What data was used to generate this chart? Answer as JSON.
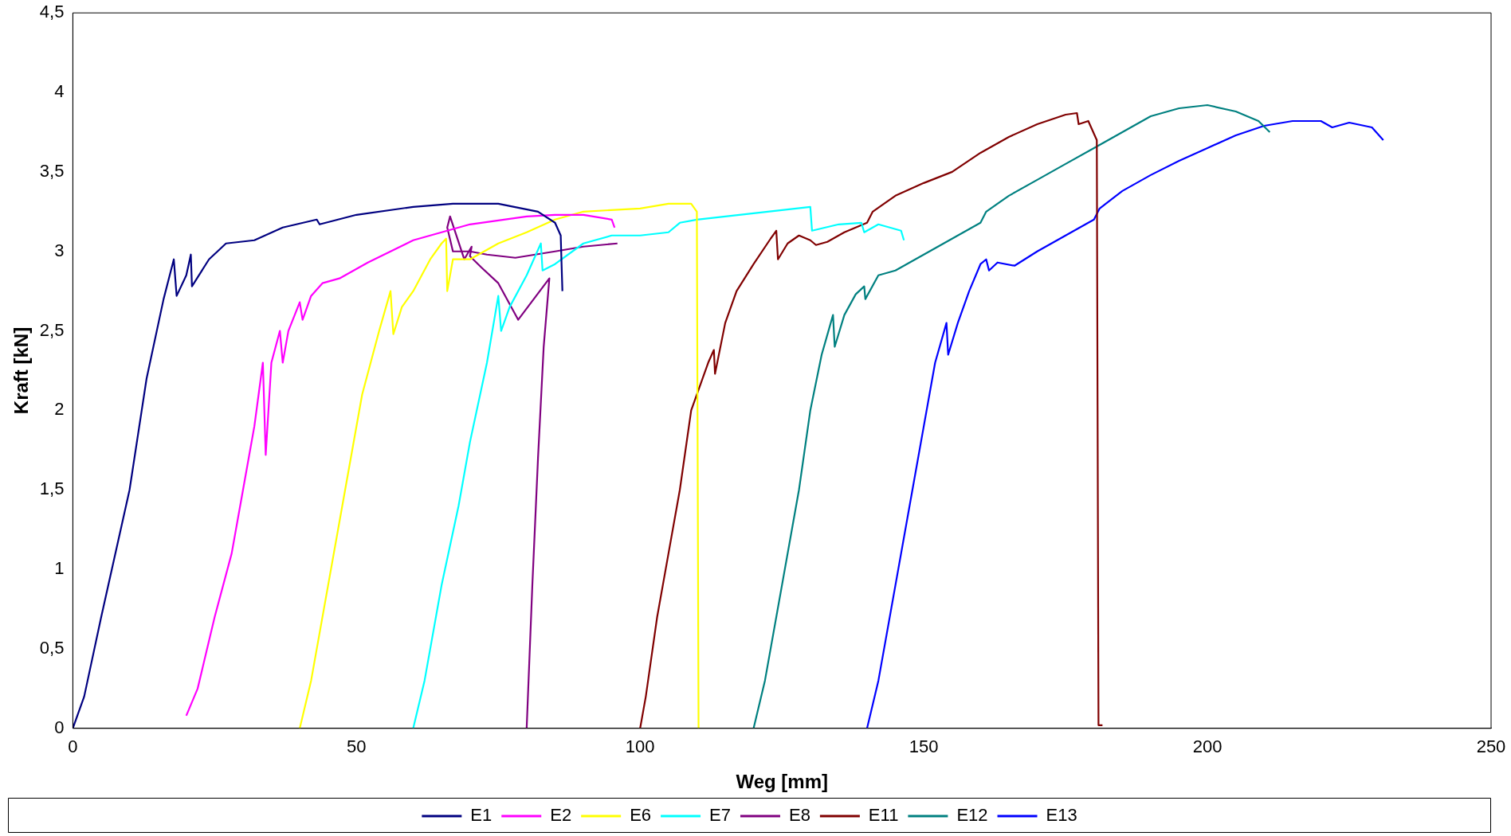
{
  "chart_data": {
    "type": "line",
    "xlabel": "Weg [mm]",
    "ylabel": "Kraft [kN]",
    "xlim": [
      0,
      250
    ],
    "xticks": [
      0,
      50,
      100,
      150,
      200,
      250
    ],
    "ylim": [
      0,
      4.5
    ],
    "yticks": [
      0,
      {
        "value": 0.5,
        "label": "0,5"
      },
      1,
      {
        "value": 1.5,
        "label": "1,5"
      },
      2,
      {
        "value": 2.5,
        "label": "2,5"
      },
      3,
      {
        "value": 3.5,
        "label": "3,5"
      },
      4,
      {
        "value": 4.5,
        "label": "4,5"
      }
    ],
    "grid": false,
    "legend": "bottom",
    "marker": "none",
    "line_style": "solid",
    "series": [
      {
        "name": "E1",
        "color": "#000080",
        "x": [
          0,
          2,
          5,
          10,
          13,
          16,
          17.8,
          18.3,
          20,
          20.8,
          21,
          24,
          27,
          32,
          37,
          43,
          43.5,
          50,
          60,
          67,
          75,
          82,
          85,
          86,
          86.3
        ],
        "values": [
          0,
          0.2,
          0.7,
          1.5,
          2.2,
          2.7,
          2.95,
          2.72,
          2.85,
          2.98,
          2.78,
          2.95,
          3.05,
          3.07,
          3.15,
          3.2,
          3.17,
          3.23,
          3.28,
          3.3,
          3.3,
          3.25,
          3.18,
          3.1,
          2.75
        ]
      },
      {
        "name": "E2",
        "color": "#ff00ff",
        "x": [
          20,
          22,
          25,
          28,
          30,
          32,
          33.5,
          34,
          35,
          36.5,
          37,
          38,
          40,
          40.5,
          42,
          44,
          47,
          52,
          60,
          70,
          80,
          85,
          90,
          95,
          95.5
        ],
        "values": [
          0.08,
          0.25,
          0.7,
          1.1,
          1.5,
          1.9,
          2.3,
          1.72,
          2.3,
          2.5,
          2.3,
          2.5,
          2.68,
          2.57,
          2.72,
          2.8,
          2.83,
          2.93,
          3.07,
          3.17,
          3.22,
          3.23,
          3.23,
          3.2,
          3.15
        ]
      },
      {
        "name": "E6",
        "color": "#ffff00",
        "x": [
          40,
          42,
          45,
          48,
          51,
          54,
          56,
          56.5,
          58,
          60,
          63,
          65,
          65.8,
          66,
          67,
          70,
          75,
          80,
          85,
          90,
          100,
          105,
          109,
          110,
          110.3
        ],
        "values": [
          0,
          0.3,
          0.9,
          1.5,
          2.1,
          2.5,
          2.75,
          2.48,
          2.65,
          2.75,
          2.95,
          3.05,
          3.08,
          2.75,
          2.95,
          2.95,
          3.05,
          3.12,
          3.2,
          3.25,
          3.27,
          3.3,
          3.3,
          3.25,
          0
        ]
      },
      {
        "name": "E7",
        "color": "#00ffff",
        "x": [
          60,
          62,
          65,
          68,
          70,
          73,
          75,
          75.5,
          77,
          80,
          82.5,
          82.8,
          85,
          90,
          95,
          100,
          105,
          107,
          110,
          120,
          130,
          130.3,
          135,
          139,
          139.5,
          142,
          146,
          146.5
        ],
        "values": [
          0,
          0.3,
          0.9,
          1.4,
          1.8,
          2.3,
          2.72,
          2.5,
          2.65,
          2.85,
          3.05,
          2.88,
          2.92,
          3.05,
          3.1,
          3.1,
          3.12,
          3.18,
          3.2,
          3.24,
          3.28,
          3.13,
          3.17,
          3.18,
          3.12,
          3.17,
          3.13,
          3.07
        ]
      },
      {
        "name": "E8",
        "color": "#800080",
        "x": [
          80,
          81,
          82,
          83,
          84,
          78.5,
          75,
          72,
          70,
          70.3,
          69,
          66.5,
          66,
          67,
          70,
          73,
          78,
          85,
          90,
          96
        ],
        "values": [
          0,
          0.9,
          1.7,
          2.4,
          2.83,
          2.57,
          2.8,
          2.9,
          2.97,
          3.03,
          2.95,
          3.22,
          3.15,
          3,
          3,
          2.98,
          2.96,
          3,
          3.03,
          3.05
        ]
      },
      {
        "name": "E11",
        "color": "#800000",
        "x": [
          100,
          101,
          103,
          105,
          107,
          109,
          112,
          113,
          113.2,
          115,
          117,
          120,
          123,
          124,
          124.3,
          126,
          128,
          130,
          131,
          133,
          136,
          140,
          141,
          145,
          150,
          155,
          160,
          165,
          170,
          175,
          177,
          177.3,
          179,
          180.5,
          180.8,
          181.5
        ],
        "values": [
          0,
          0.2,
          0.7,
          1.1,
          1.5,
          2,
          2.3,
          2.38,
          2.23,
          2.55,
          2.75,
          2.92,
          3.08,
          3.13,
          2.95,
          3.05,
          3.1,
          3.07,
          3.04,
          3.06,
          3.12,
          3.18,
          3.25,
          3.35,
          3.43,
          3.5,
          3.62,
          3.72,
          3.8,
          3.86,
          3.87,
          3.8,
          3.82,
          3.7,
          0.02,
          0.02
        ]
      },
      {
        "name": "E12",
        "color": "#008080",
        "x": [
          120,
          122,
          125,
          128,
          130,
          132,
          134,
          134.3,
          136,
          138,
          139.5,
          139.7,
          142,
          145,
          150,
          155,
          160,
          161,
          165,
          170,
          175,
          180,
          185,
          190,
          195,
          200,
          205,
          209,
          211
        ],
        "values": [
          0,
          0.3,
          0.9,
          1.5,
          2,
          2.35,
          2.6,
          2.4,
          2.6,
          2.73,
          2.78,
          2.7,
          2.85,
          2.88,
          2.98,
          3.08,
          3.18,
          3.25,
          3.35,
          3.45,
          3.55,
          3.65,
          3.75,
          3.85,
          3.9,
          3.92,
          3.88,
          3.82,
          3.75
        ]
      },
      {
        "name": "E13",
        "color": "#0000ff",
        "x": [
          140,
          142,
          145,
          148,
          150,
          152,
          154,
          154.3,
          156,
          158,
          160,
          161,
          161.5,
          163,
          166,
          170,
          175,
          180,
          181,
          185,
          190,
          195,
          200,
          205,
          210,
          215,
          220,
          222,
          225,
          229,
          231
        ],
        "values": [
          0,
          0.3,
          0.9,
          1.5,
          1.9,
          2.3,
          2.55,
          2.35,
          2.55,
          2.75,
          2.92,
          2.95,
          2.88,
          2.93,
          2.91,
          3,
          3.1,
          3.2,
          3.27,
          3.38,
          3.48,
          3.57,
          3.65,
          3.73,
          3.79,
          3.82,
          3.82,
          3.78,
          3.81,
          3.78,
          3.7
        ]
      }
    ]
  }
}
